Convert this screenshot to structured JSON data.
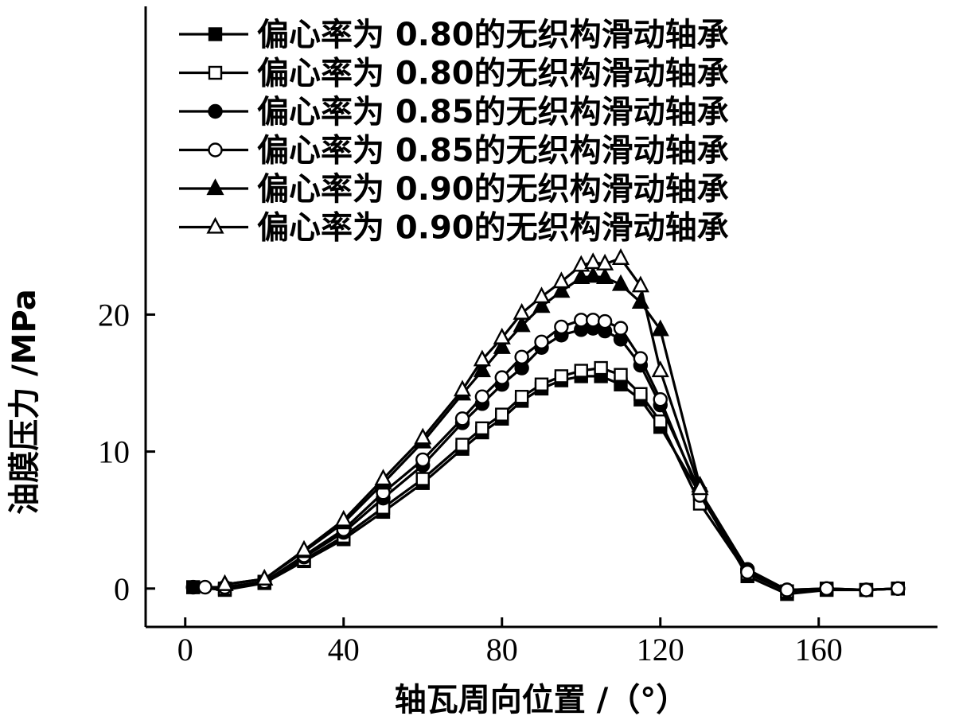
{
  "chart_data": {
    "type": "line",
    "xlabel": "轴瓦周向位置 /（°）",
    "ylabel": "油膜压力 /MPa",
    "xlim": [
      -10,
      190
    ],
    "ylim": [
      -2.8,
      42.5
    ],
    "xticks": [
      0,
      40,
      80,
      120,
      160
    ],
    "yticks": [
      0,
      10,
      20
    ],
    "xtick_labels": [
      "0",
      "40",
      "80",
      "120",
      "160"
    ],
    "ytick_labels": [
      "0",
      "10",
      "20"
    ],
    "legend_position": "top-left",
    "grid": false,
    "series": [
      {
        "name": "偏心率为 0.80的无织构滑动轴承",
        "marker": "square-filled",
        "x": [
          2,
          10,
          20,
          30,
          40,
          50,
          60,
          70,
          75,
          80,
          85,
          90,
          95,
          100,
          105,
          110,
          115,
          120,
          130,
          142,
          152,
          162,
          172,
          180
        ],
        "y": [
          0.1,
          -0.1,
          0.4,
          2.0,
          3.6,
          5.6,
          7.7,
          10.2,
          11.4,
          12.4,
          13.7,
          14.6,
          15.2,
          15.5,
          15.5,
          14.9,
          13.8,
          11.8,
          6.9,
          0.9,
          -0.4,
          -0.1,
          -0.1,
          0.0
        ]
      },
      {
        "name": "偏心率为 0.80的无织构滑动轴承",
        "marker": "square-open",
        "x": [
          2,
          10,
          20,
          30,
          40,
          50,
          60,
          70,
          75,
          80,
          85,
          90,
          95,
          100,
          105,
          110,
          115,
          120,
          130,
          142,
          152,
          162,
          172,
          180
        ],
        "y": [
          0.1,
          0.0,
          0.5,
          2.1,
          3.8,
          5.9,
          8.0,
          10.5,
          11.7,
          12.7,
          14.0,
          14.9,
          15.5,
          15.9,
          16.1,
          15.6,
          14.2,
          12.2,
          6.2,
          1.1,
          -0.2,
          0.0,
          -0.1,
          0.0
        ]
      },
      {
        "name": "偏心率为 0.85的无织构滑动轴承",
        "marker": "circle-filled",
        "x": [
          2,
          10,
          20,
          30,
          40,
          50,
          60,
          70,
          75,
          80,
          85,
          90,
          95,
          100,
          103,
          106,
          110,
          115,
          120,
          130,
          142,
          152,
          162,
          172,
          180
        ],
        "y": [
          0.1,
          0.1,
          0.5,
          2.3,
          4.1,
          6.6,
          9.0,
          12.1,
          13.5,
          14.9,
          16.1,
          17.6,
          18.5,
          18.9,
          19.0,
          18.8,
          18.2,
          16.3,
          13.4,
          7.1,
          1.4,
          -0.1,
          0.0,
          -0.1,
          0.0
        ]
      },
      {
        "name": "偏心率为 0.85的无织构滑动轴承",
        "marker": "circle-open",
        "x": [
          5,
          10,
          20,
          30,
          40,
          50,
          60,
          70,
          75,
          80,
          85,
          90,
          95,
          100,
          103,
          106,
          110,
          115,
          120,
          130,
          142,
          152,
          162,
          172,
          180
        ],
        "y": [
          0.1,
          0.1,
          0.5,
          2.4,
          4.3,
          7.0,
          9.4,
          12.4,
          14.0,
          15.4,
          16.9,
          18.0,
          19.1,
          19.6,
          19.6,
          19.5,
          19.0,
          16.8,
          13.8,
          6.8,
          1.2,
          -0.1,
          0.0,
          -0.1,
          0.0
        ]
      },
      {
        "name": "偏心率为 0.90的无织构滑动轴承",
        "marker": "triangle-filled",
        "x": [
          10,
          20,
          30,
          40,
          50,
          60,
          70,
          75,
          80,
          85,
          90,
          95,
          100,
          103,
          106,
          110,
          115,
          120,
          130
        ],
        "y": [
          0.3,
          0.7,
          2.7,
          4.8,
          7.7,
          10.7,
          14.2,
          15.9,
          17.6,
          19.2,
          20.6,
          21.7,
          22.7,
          22.8,
          22.7,
          22.2,
          20.9,
          18.9,
          7.5
        ]
      },
      {
        "name": "偏心率为 0.90的无织构滑动轴承",
        "marker": "triangle-open",
        "x": [
          10,
          20,
          30,
          40,
          50,
          60,
          70,
          75,
          80,
          85,
          90,
          95,
          100,
          103,
          106,
          110,
          115,
          120,
          130
        ],
        "y": [
          0.3,
          0.7,
          2.8,
          5.0,
          8.0,
          11.0,
          14.5,
          16.7,
          18.3,
          20.1,
          21.3,
          22.4,
          23.6,
          23.8,
          23.7,
          24.1,
          22.1,
          15.9,
          7.3
        ]
      }
    ]
  }
}
